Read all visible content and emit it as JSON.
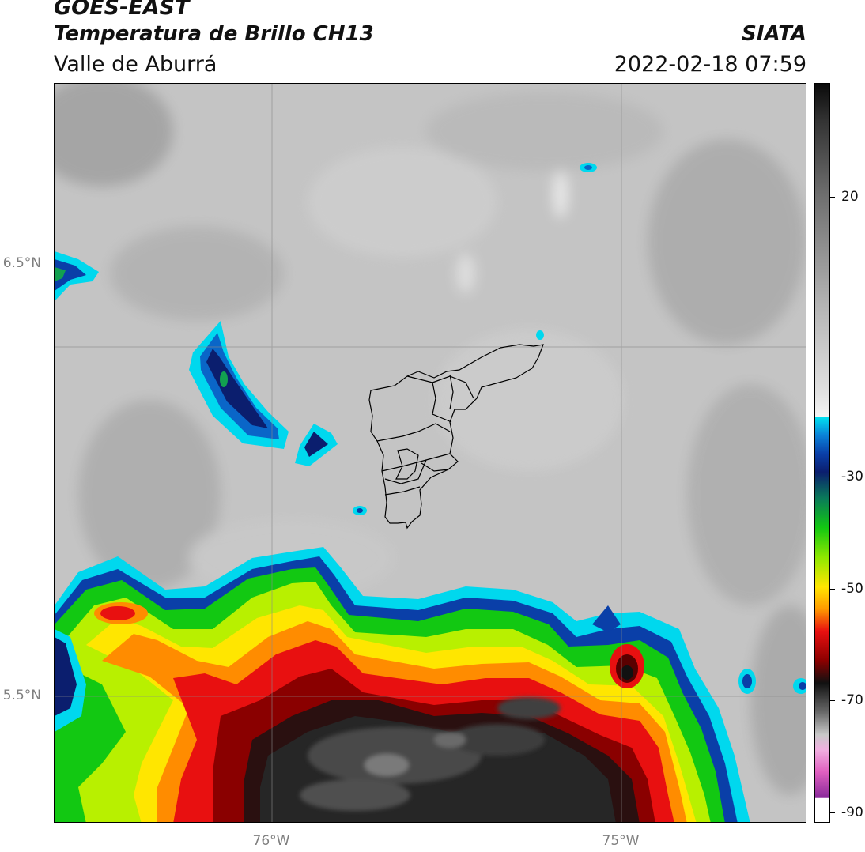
{
  "header": {
    "satellite": "GOES-EAST",
    "product": "Temperatura de Brillo CH13",
    "region": "Valle de Aburrá",
    "agency": "SIATA",
    "datetime": "2022-02-18 07:59"
  },
  "map": {
    "lat_labels": [
      "6.5°N",
      "5.5°N"
    ],
    "lon_labels": [
      "76°W",
      "75°W"
    ]
  },
  "colorbar": {
    "tick_labels": [
      "20",
      "-30",
      "-50",
      "-70",
      "-90"
    ],
    "colors": {
      "black_top": "#111111",
      "gray_mid": "#8a8a8a",
      "light_gray": "#d8d8d8",
      "cyan": "#00d8ee",
      "blue": "#0a3fa8",
      "navy": "#0b1e6e",
      "green": "#12c812",
      "lime": "#b8f000",
      "yellow": "#ffe600",
      "orange": "#ff8c00",
      "red": "#e81010",
      "dark_red": "#5a0000",
      "magenta": "#e060c0",
      "purple": "#7a1a8a"
    }
  }
}
